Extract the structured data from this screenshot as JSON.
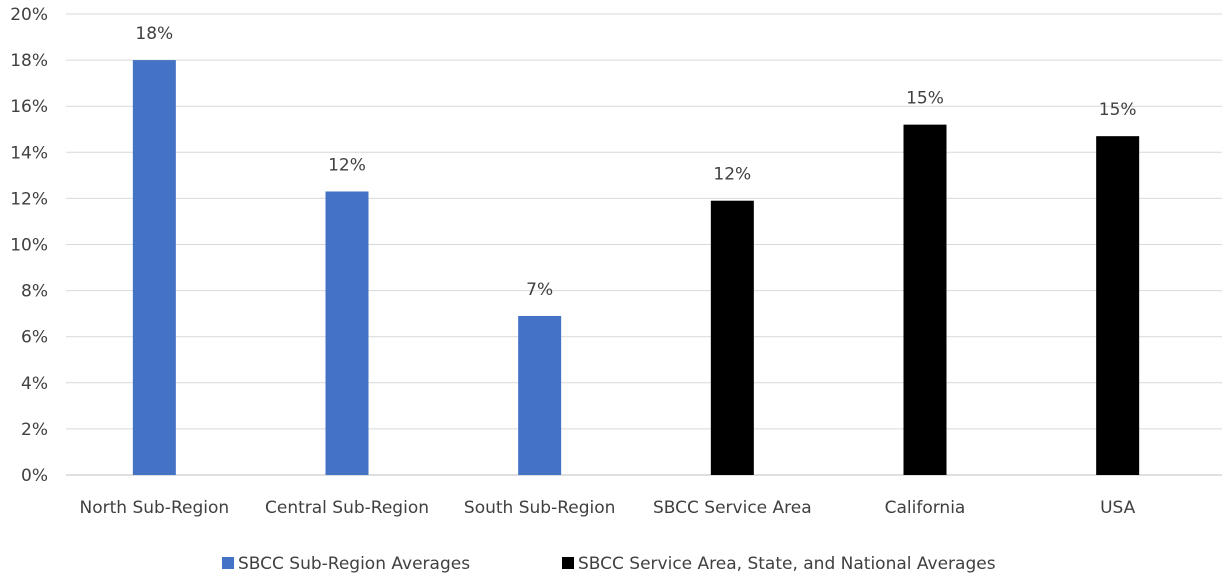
{
  "chart_data": {
    "type": "bar",
    "categories": [
      "North Sub-Region",
      "Central Sub-Region",
      "South Sub-Region",
      "SBCC Service Area",
      "California",
      "USA"
    ],
    "series": [
      {
        "name": "SBCC Sub-Region Averages",
        "color": "#4472C4",
        "values": [
          18.0,
          12.3,
          6.9,
          null,
          null,
          null
        ],
        "data_labels": [
          "18%",
          "12%",
          "7%",
          null,
          null,
          null
        ]
      },
      {
        "name": "SBCC Service Area, State, and National Averages",
        "color": "#000000",
        "values": [
          null,
          null,
          null,
          11.9,
          15.2,
          14.7
        ],
        "data_labels": [
          null,
          null,
          null,
          "12%",
          "15%",
          "15%"
        ]
      }
    ],
    "title": "",
    "xlabel": "",
    "ylabel": "",
    "ylim": [
      0,
      20
    ],
    "yticks": [
      0,
      2,
      4,
      6,
      8,
      10,
      12,
      14,
      16,
      18,
      20
    ],
    "ytick_labels": [
      "0%",
      "2%",
      "4%",
      "6%",
      "8%",
      "10%",
      "12%",
      "14%",
      "16%",
      "18%",
      "20%"
    ],
    "grid": true,
    "legend_position": "bottom"
  }
}
